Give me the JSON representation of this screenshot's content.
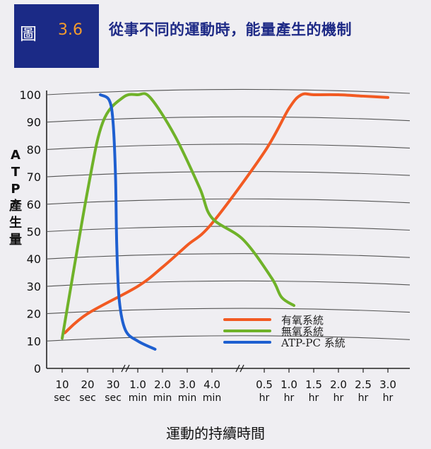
{
  "header": {
    "figure_label": "圖",
    "figure_number": "3.6",
    "title": "從事不同的運動時，能量產生的機制"
  },
  "chart_data": {
    "type": "line",
    "title": "從事不同的運動時，能量產生的機制",
    "ylabel": "ATP產生量",
    "xlabel": "運動的持續時間",
    "ylim": [
      0,
      100
    ],
    "yticks": [
      0,
      10,
      20,
      30,
      40,
      50,
      60,
      70,
      80,
      90,
      100
    ],
    "grid": true,
    "legend_position": "lower-right",
    "x_ticks": [
      {
        "value": "10",
        "unit": "sec"
      },
      {
        "value": "20",
        "unit": "sec"
      },
      {
        "value": "30",
        "unit": "sec"
      },
      {
        "value": "1.0",
        "unit": "min"
      },
      {
        "value": "2.0",
        "unit": "min"
      },
      {
        "value": "3.0",
        "unit": "min"
      },
      {
        "value": "4.0",
        "unit": "min"
      },
      {
        "value": "0.5",
        "unit": "hr"
      },
      {
        "value": "1.0",
        "unit": "hr"
      },
      {
        "value": "1.5",
        "unit": "hr"
      },
      {
        "value": "2.0",
        "unit": "hr"
      },
      {
        "value": "2.5",
        "unit": "hr"
      },
      {
        "value": "3.0",
        "unit": "hr"
      }
    ],
    "series": [
      {
        "name": "有氧系統",
        "color": "#f25a22",
        "points": [
          [
            0.1,
            13
          ],
          [
            1,
            20
          ],
          [
            3,
            30
          ],
          [
            4,
            37
          ],
          [
            5,
            45
          ],
          [
            6,
            53
          ],
          [
            7,
            79
          ],
          [
            8,
            95
          ],
          [
            8.5,
            100
          ],
          [
            9,
            100
          ],
          [
            10,
            100
          ],
          [
            11,
            99.5
          ],
          [
            12,
            99
          ]
        ]
      },
      {
        "name": "無氧系統",
        "color": "#6fb229",
        "points": [
          [
            0,
            11
          ],
          [
            1,
            65
          ],
          [
            1.6,
            90
          ],
          [
            2.4,
            99
          ],
          [
            3,
            100
          ],
          [
            3.5,
            99
          ],
          [
            4.5,
            85
          ],
          [
            5.5,
            66
          ],
          [
            6,
            55
          ],
          [
            6.6,
            47
          ],
          [
            7.3,
            33
          ],
          [
            7.7,
            26
          ],
          [
            8.2,
            23
          ]
        ]
      },
      {
        "name": "ATP-PC 系統",
        "color": "#1e5fd0",
        "points": [
          [
            1.5,
            100
          ],
          [
            1.85,
            98
          ],
          [
            2.0,
            90
          ],
          [
            2.1,
            70
          ],
          [
            2.15,
            45
          ],
          [
            2.25,
            25
          ],
          [
            2.5,
            14
          ],
          [
            3.0,
            10
          ],
          [
            3.7,
            7
          ]
        ]
      }
    ]
  }
}
